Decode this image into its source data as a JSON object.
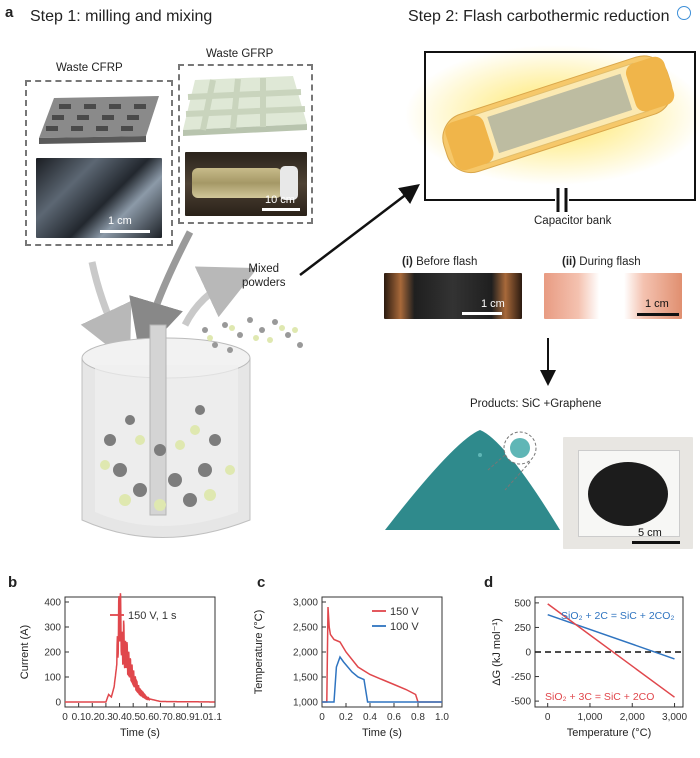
{
  "panel_a": {
    "label": "a",
    "step1_title": "Step 1: milling and mixing",
    "step2_title": "Step 2: Flash carbothermic reduction",
    "waste_cfrp": "Waste CFRP",
    "waste_gfrp": "Waste GFRP",
    "cfrp_scale": "1 cm",
    "gfrp_scale": "10 cm",
    "mixed_powders_line1": "Mixed",
    "mixed_powders_line2": "powders",
    "capacitor_bank": "Capacitor bank",
    "before_flash_num": "(i)",
    "before_flash": "Before flash",
    "during_flash_num": "(ii)",
    "during_flash": "During flash",
    "before_scale": "1 cm",
    "during_scale": "1 cm",
    "products": "Products: SiC +Graphene",
    "product_scale": "5 cm"
  },
  "chart_data": [
    {
      "panel": "b",
      "type": "line",
      "xlabel": "Time (s)",
      "ylabel": "Current (A)",
      "xlim": [
        0,
        1.1
      ],
      "ylim": [
        -20,
        420
      ],
      "xticks": [
        "0",
        "0.1",
        "0.2",
        "0.3",
        "0.4",
        "0.5",
        "0.6",
        "0.7",
        "0.8",
        "0.9",
        "1.0",
        "1.1"
      ],
      "yticks": [
        "0",
        "100",
        "200",
        "300",
        "400"
      ],
      "series": [
        {
          "name": "150 V, 1 s",
          "color": "#e0474c",
          "x": [
            0,
            0.3,
            0.32,
            0.34,
            0.36,
            0.38,
            0.39,
            0.4,
            0.41,
            0.42,
            0.43,
            0.44,
            0.45,
            0.46,
            0.47,
            0.48,
            0.5,
            0.52,
            0.55,
            0.6,
            0.7,
            1.1
          ],
          "y": [
            0,
            0,
            30,
            20,
            60,
            150,
            280,
            355,
            320,
            190,
            250,
            180,
            200,
            160,
            150,
            130,
            100,
            70,
            40,
            15,
            2,
            0
          ]
        }
      ]
    },
    {
      "panel": "c",
      "type": "line",
      "xlabel": "Time (s)",
      "ylabel": "Temperature (°C)",
      "xlim": [
        0,
        1.0
      ],
      "ylim": [
        900,
        3100
      ],
      "xticks": [
        "0",
        "0.2",
        "0.4",
        "0.6",
        "0.8",
        "1.0"
      ],
      "yticks": [
        "1,000",
        "1,500",
        "2,000",
        "2,500",
        "3,000"
      ],
      "series": [
        {
          "name": "150 V",
          "color": "#e0474c",
          "x": [
            0,
            0.04,
            0.05,
            0.06,
            0.07,
            0.1,
            0.15,
            0.2,
            0.3,
            0.4,
            0.5,
            0.6,
            0.7,
            0.78,
            0.8,
            1.0
          ],
          "y": [
            1000,
            1000,
            2900,
            2500,
            2350,
            2250,
            2200,
            2000,
            1700,
            1550,
            1450,
            1350,
            1250,
            1150,
            1000,
            1000
          ]
        },
        {
          "name": "100 V",
          "color": "#2f74c0",
          "x": [
            0,
            0.1,
            0.12,
            0.15,
            0.18,
            0.25,
            0.3,
            0.35,
            0.38,
            1.0
          ],
          "y": [
            1000,
            1000,
            1700,
            1900,
            1800,
            1600,
            1500,
            1450,
            1000,
            1000
          ]
        }
      ]
    },
    {
      "panel": "d",
      "type": "line",
      "xlabel": "Temperature (°C)",
      "ylabel": "ΔG (kJ mol⁻¹)",
      "xlim": [
        -300,
        3200
      ],
      "ylim": [
        -560,
        560
      ],
      "xticks": [
        "0",
        "1,000",
        "2,000",
        "3,000"
      ],
      "yticks": [
        "500",
        "250",
        "0",
        "-250",
        "-500"
      ],
      "series": [
        {
          "name": "SiO₂ + 2C = SiC + 2CO₂",
          "color": "#2f74c0",
          "x": [
            0,
            3000
          ],
          "y": [
            380,
            -70
          ]
        },
        {
          "name": "SiO₂ + 3C = SiC + 2CO",
          "color": "#e0474c",
          "x": [
            0,
            3000
          ],
          "y": [
            490,
            -460
          ]
        }
      ]
    }
  ]
}
